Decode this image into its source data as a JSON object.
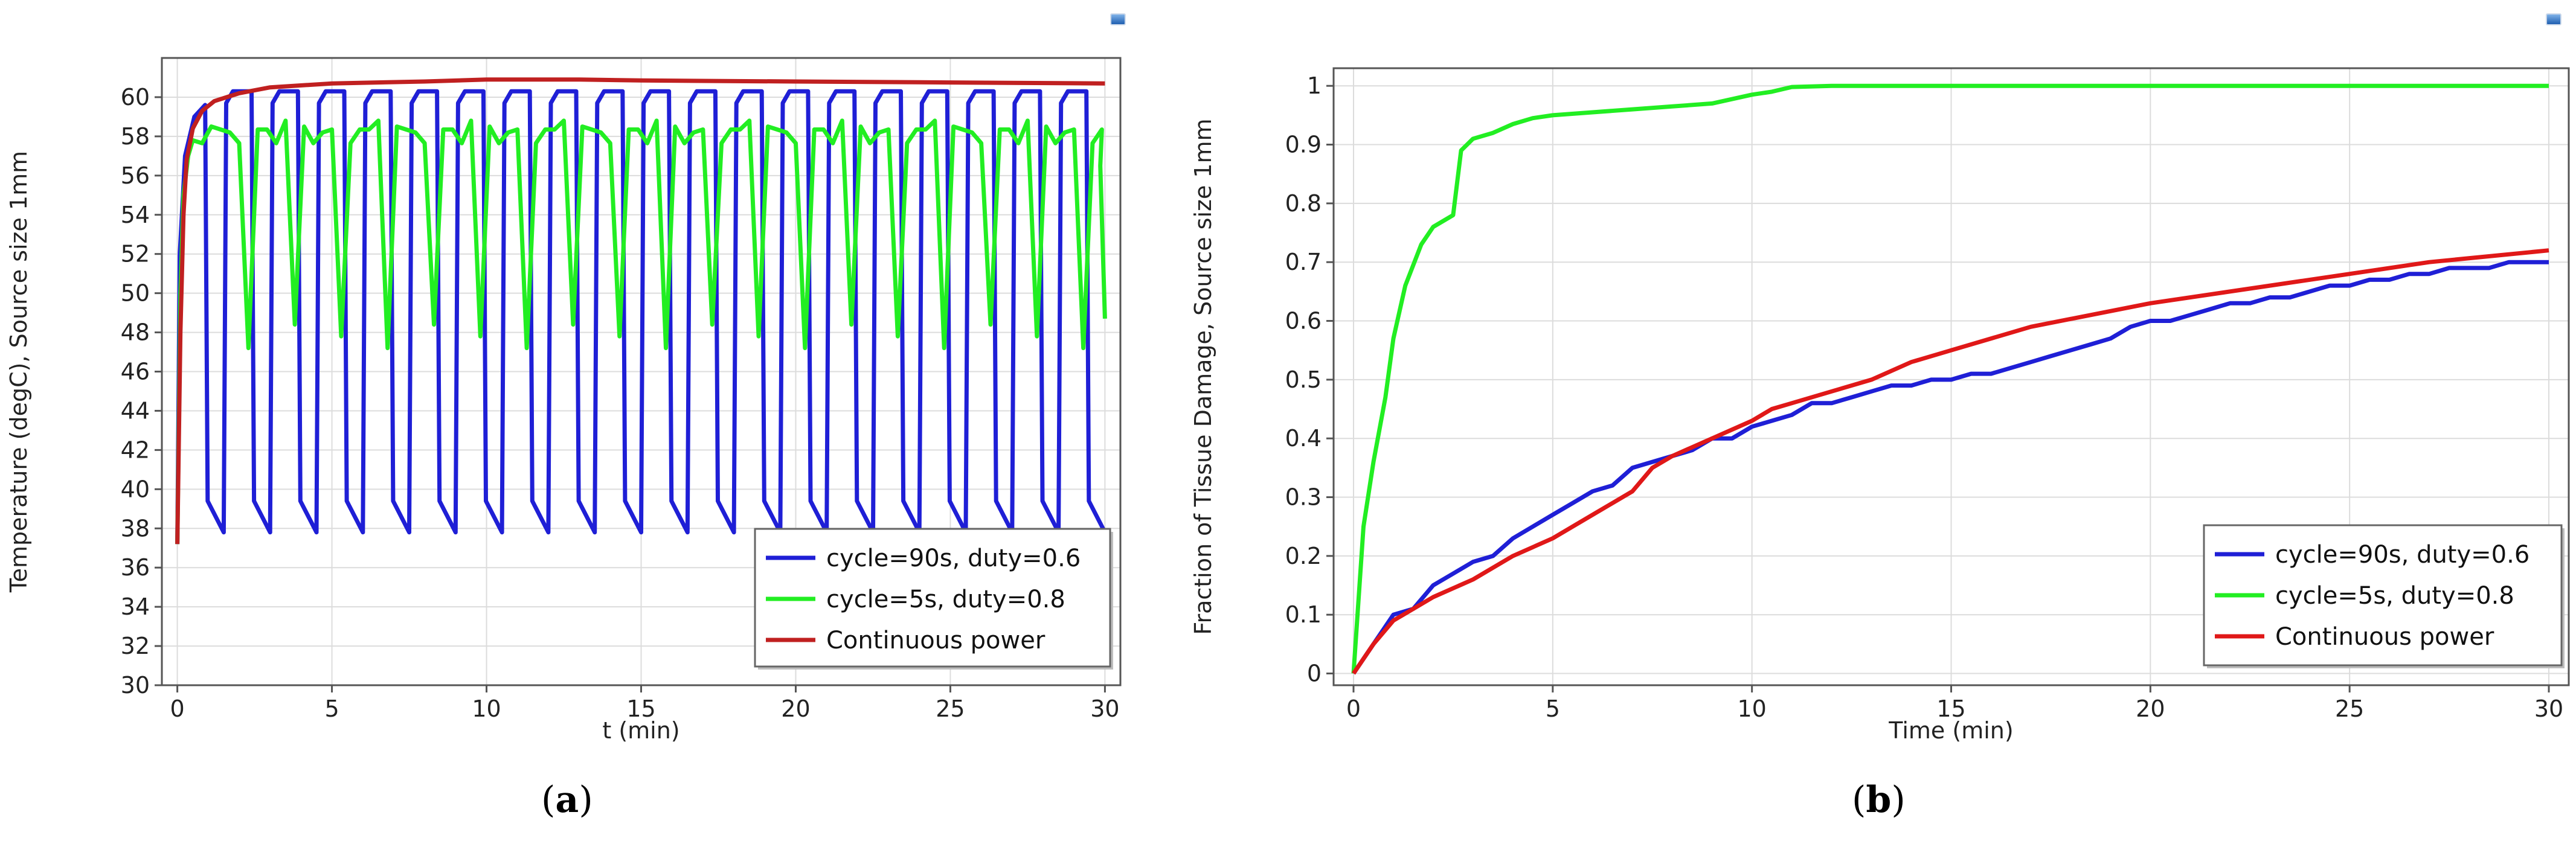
{
  "colors": {
    "blue": "#1f1fd6",
    "green": "#22ee22",
    "red": "#e01818",
    "grid": "#dcdcdc",
    "axis": "#555555"
  },
  "panels": {
    "a": {
      "label_open": "(",
      "label_letter": "a",
      "label_close": ")"
    },
    "b": {
      "label_open": "(",
      "label_letter": "b",
      "label_close": ")"
    }
  },
  "chart_data": [
    {
      "type": "line",
      "id": "a",
      "title": "",
      "xlabel": "t (min)",
      "ylabel": "Temperature (degC), Source size 1mm",
      "xlim": [
        -0.5,
        30.5
      ],
      "ylim": [
        30,
        62
      ],
      "xticks": [
        0,
        5,
        10,
        15,
        20,
        25,
        30
      ],
      "yticks": [
        30,
        32,
        34,
        36,
        38,
        40,
        42,
        44,
        46,
        48,
        50,
        52,
        54,
        56,
        58,
        60
      ],
      "grid": true,
      "legend_position": "bottom-right",
      "series": [
        {
          "name": "cycle=90s, duty=0.6",
          "color": "#1f1fd6",
          "pattern": {
            "kind": "pulse",
            "period_min": 1.5,
            "on_fraction": 0.6,
            "start": 37.2,
            "high_first": 59.6,
            "high": 60.3,
            "low": 37.8,
            "end_x": 30
          }
        },
        {
          "name": "cycle=5s, duty=0.8",
          "color": "#22ee22",
          "pattern": {
            "kind": "oscillation",
            "start": 37.2,
            "base": 57.3,
            "high": 58.8,
            "dip_every_min": 1.5,
            "dip_low": 47.2,
            "end_value": 48.7,
            "end_x": 30
          }
        },
        {
          "name": "Continuous power",
          "color": "#c02020",
          "x": [
            0,
            0.1,
            0.2,
            0.3,
            0.5,
            0.8,
            1.2,
            2,
            3,
            5,
            8,
            10,
            13,
            15,
            20,
            25,
            30
          ],
          "y": [
            37.2,
            48,
            54,
            56.8,
            58.4,
            59.3,
            59.8,
            60.2,
            60.5,
            60.7,
            60.8,
            60.9,
            60.9,
            60.85,
            60.8,
            60.75,
            60.7
          ]
        }
      ]
    },
    {
      "type": "line",
      "id": "b",
      "title": "",
      "xlabel": "Time (min)",
      "ylabel": "Fraction of Tissue Damage, Source size 1mm",
      "xlim": [
        -0.5,
        30.5
      ],
      "ylim": [
        -0.02,
        1.03
      ],
      "xticks": [
        0,
        5,
        10,
        15,
        20,
        25,
        30
      ],
      "yticks": [
        0,
        0.1,
        0.2,
        0.3,
        0.4,
        0.5,
        0.6,
        0.7,
        0.8,
        0.9,
        1
      ],
      "ytick_labels": [
        "0",
        "0.1",
        "0.2",
        "0.3",
        "0.4",
        "0.5",
        "0.6",
        "0.7",
        "0.8",
        "0.9",
        "1"
      ],
      "grid": true,
      "legend_position": "bottom-right",
      "series": [
        {
          "name": "cycle=90s, duty=0.6",
          "color": "#1f1fd6",
          "x": [
            0,
            0.5,
            1,
            1.5,
            2,
            2.5,
            3,
            3.5,
            4,
            4.5,
            5,
            5.5,
            6,
            6.5,
            7,
            7.5,
            8,
            8.5,
            9,
            9.5,
            10,
            10.5,
            11,
            11.5,
            12,
            12.5,
            13,
            13.5,
            14,
            14.5,
            15,
            15.5,
            16,
            16.5,
            17,
            17.5,
            18,
            18.5,
            19,
            19.5,
            20,
            20.5,
            21,
            21.5,
            22,
            22.5,
            23,
            23.5,
            24,
            24.5,
            25,
            25.5,
            26,
            26.5,
            27,
            27.5,
            28,
            28.5,
            29,
            29.5,
            30
          ],
          "y": [
            0,
            0.05,
            0.1,
            0.11,
            0.15,
            0.17,
            0.19,
            0.2,
            0.23,
            0.25,
            0.27,
            0.29,
            0.31,
            0.32,
            0.35,
            0.36,
            0.37,
            0.38,
            0.4,
            0.4,
            0.42,
            0.43,
            0.44,
            0.46,
            0.46,
            0.47,
            0.48,
            0.49,
            0.49,
            0.5,
            0.5,
            0.51,
            0.51,
            0.52,
            0.53,
            0.54,
            0.55,
            0.56,
            0.57,
            0.59,
            0.6,
            0.6,
            0.61,
            0.62,
            0.63,
            0.63,
            0.64,
            0.64,
            0.65,
            0.66,
            0.66,
            0.67,
            0.67,
            0.68,
            0.68,
            0.69,
            0.69,
            0.69,
            0.7,
            0.7,
            0.7
          ]
        },
        {
          "name": "cycle=5s, duty=0.8",
          "color": "#22ee22",
          "x": [
            0,
            0.25,
            0.5,
            0.8,
            1,
            1.3,
            1.7,
            2,
            2.5,
            2.7,
            3,
            3.5,
            4,
            4.5,
            5,
            6,
            7,
            8,
            9,
            10,
            10.5,
            11,
            12,
            13,
            15,
            20,
            25,
            30
          ],
          "y": [
            0,
            0.25,
            0.36,
            0.47,
            0.57,
            0.66,
            0.73,
            0.76,
            0.78,
            0.89,
            0.91,
            0.92,
            0.935,
            0.945,
            0.95,
            0.955,
            0.96,
            0.965,
            0.97,
            0.985,
            0.99,
            0.998,
            1,
            1,
            1,
            1,
            1,
            1
          ]
        },
        {
          "name": "Continuous power",
          "color": "#e01818",
          "x": [
            0,
            0.5,
            1,
            2,
            3,
            4,
            5,
            6,
            7,
            7.5,
            8,
            9,
            10,
            10.5,
            11,
            12,
            13,
            14,
            15,
            17,
            20,
            23,
            25,
            27,
            30
          ],
          "y": [
            0,
            0.05,
            0.09,
            0.13,
            0.16,
            0.2,
            0.23,
            0.27,
            0.31,
            0.35,
            0.37,
            0.4,
            0.43,
            0.45,
            0.46,
            0.48,
            0.5,
            0.53,
            0.55,
            0.59,
            0.63,
            0.66,
            0.68,
            0.7,
            0.72
          ]
        }
      ]
    }
  ]
}
